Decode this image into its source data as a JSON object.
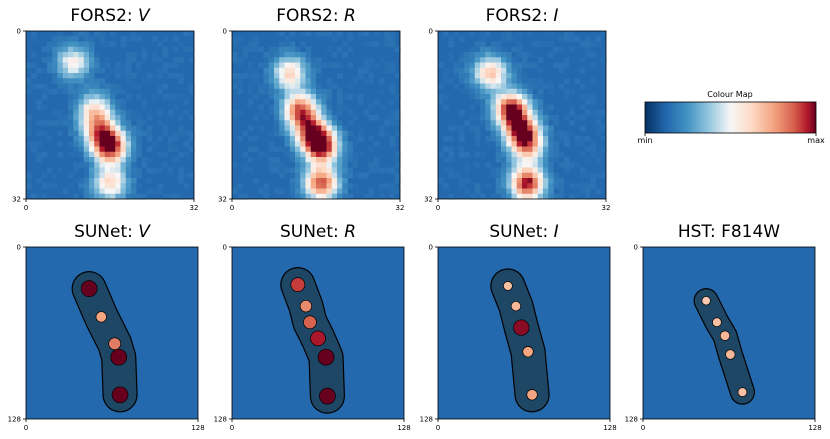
{
  "figure": {
    "colourbar": {
      "label": "Colour Map",
      "min_label": "min",
      "max_label": "max"
    }
  },
  "chart_data": [
    {
      "type": "heatmap",
      "title_prefix": "FORS2: ",
      "title_band": "V",
      "colormap": "RdBu_r",
      "x_ticks": [
        "0",
        "32"
      ],
      "y_ticks": [
        "0",
        "32"
      ],
      "xlim": [
        0,
        32
      ],
      "ylim": [
        0,
        32
      ],
      "grid": false,
      "sources": [
        {
          "x": 9,
          "y": 6,
          "peak": 0.45
        },
        {
          "x": 13,
          "y": 15,
          "peak": 0.5
        },
        {
          "x": 14,
          "y": 19,
          "peak": 0.6
        },
        {
          "x": 16,
          "y": 22,
          "peak": 1.0
        },
        {
          "x": 16,
          "y": 29,
          "peak": 0.55
        }
      ]
    },
    {
      "type": "heatmap",
      "title_prefix": "FORS2: ",
      "title_band": "R",
      "colormap": "RdBu_r",
      "x_ticks": [
        "0",
        "32"
      ],
      "y_ticks": [
        "0",
        "32"
      ],
      "xlim": [
        0,
        32
      ],
      "ylim": [
        0,
        32
      ],
      "grid": false,
      "sources": [
        {
          "x": 11,
          "y": 8,
          "peak": 0.55
        },
        {
          "x": 13,
          "y": 15,
          "peak": 0.8
        },
        {
          "x": 15,
          "y": 19,
          "peak": 0.75
        },
        {
          "x": 17,
          "y": 22,
          "peak": 1.0
        },
        {
          "x": 17,
          "y": 29,
          "peak": 0.85
        }
      ]
    },
    {
      "type": "heatmap",
      "title_prefix": "FORS2: ",
      "title_band": "I",
      "colormap": "RdBu_r",
      "x_ticks": [
        "0",
        "32"
      ],
      "y_ticks": [
        "0",
        "32"
      ],
      "xlim": [
        0,
        32
      ],
      "ylim": [
        0,
        32
      ],
      "grid": false,
      "sources": [
        {
          "x": 10,
          "y": 8,
          "peak": 0.6
        },
        {
          "x": 14,
          "y": 15,
          "peak": 1.0
        },
        {
          "x": 16,
          "y": 19,
          "peak": 0.8
        },
        {
          "x": 17,
          "y": 22,
          "peak": 0.6
        },
        {
          "x": 17,
          "y": 29,
          "peak": 0.95
        }
      ]
    },
    {
      "type": "heatmap",
      "title_prefix": "SUNet: ",
      "title_band": "V",
      "colormap": "RdBu_r",
      "x_ticks": [
        "0",
        "128"
      ],
      "y_ticks": [
        "0",
        "128"
      ],
      "xlim": [
        0,
        128
      ],
      "ylim": [
        0,
        128
      ],
      "grid": false,
      "sources": [
        {
          "x": 47,
          "y": 31,
          "peak": 1.0
        },
        {
          "x": 56,
          "y": 52,
          "peak": 0.45
        },
        {
          "x": 66,
          "y": 72,
          "peak": 0.6
        },
        {
          "x": 69,
          "y": 82,
          "peak": 1.0
        },
        {
          "x": 70,
          "y": 110,
          "peak": 1.0
        }
      ]
    },
    {
      "type": "heatmap",
      "title_prefix": "SUNet: ",
      "title_band": "R",
      "colormap": "RdBu_r",
      "x_ticks": [
        "0",
        "128"
      ],
      "y_ticks": [
        "0",
        "128"
      ],
      "xlim": [
        0,
        128
      ],
      "ylim": [
        0,
        128
      ],
      "grid": false,
      "sources": [
        {
          "x": 49,
          "y": 28,
          "peak": 0.8
        },
        {
          "x": 55,
          "y": 44,
          "peak": 0.55
        },
        {
          "x": 58,
          "y": 56,
          "peak": 0.7
        },
        {
          "x": 64,
          "y": 68,
          "peak": 0.9
        },
        {
          "x": 70,
          "y": 82,
          "peak": 1.0
        },
        {
          "x": 71,
          "y": 111,
          "peak": 1.0
        }
      ]
    },
    {
      "type": "heatmap",
      "title_prefix": "SUNet: ",
      "title_band": "I",
      "colormap": "RdBu_r",
      "x_ticks": [
        "0",
        "128"
      ],
      "y_ticks": [
        "0",
        "128"
      ],
      "xlim": [
        0,
        128
      ],
      "ylim": [
        0,
        128
      ],
      "grid": false,
      "sources": [
        {
          "x": 52,
          "y": 29,
          "peak": 0.3
        },
        {
          "x": 58,
          "y": 44,
          "peak": 0.35
        },
        {
          "x": 62,
          "y": 60,
          "peak": 0.95
        },
        {
          "x": 67,
          "y": 78,
          "peak": 0.45
        },
        {
          "x": 70,
          "y": 110,
          "peak": 0.45
        }
      ]
    },
    {
      "type": "heatmap",
      "title_prefix": "HST: F814W",
      "title_band": "",
      "colormap": "RdBu_r",
      "x_ticks": [
        "0",
        "128"
      ],
      "y_ticks": [
        "0",
        "128"
      ],
      "xlim": [
        0,
        128
      ],
      "ylim": [
        0,
        128
      ],
      "grid": false,
      "sources": [
        {
          "x": 47,
          "y": 40,
          "peak": 0.25
        },
        {
          "x": 55,
          "y": 56,
          "peak": 0.3
        },
        {
          "x": 61,
          "y": 66,
          "peak": 0.35
        },
        {
          "x": 65,
          "y": 80,
          "peak": 0.35
        },
        {
          "x": 74,
          "y": 108,
          "peak": 0.3
        }
      ]
    }
  ]
}
